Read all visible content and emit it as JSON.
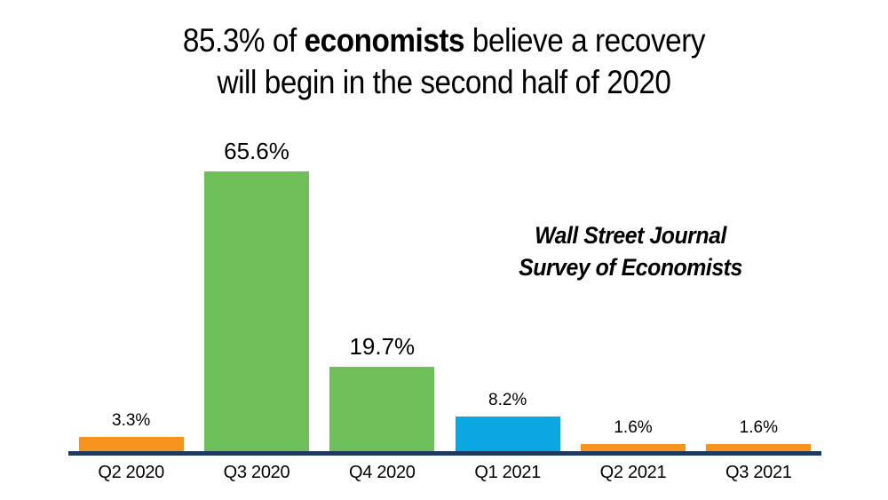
{
  "title": {
    "line1_prefix": "85.3% of ",
    "line1_bold": "economists",
    "line1_suffix": " believe a recovery",
    "line2": "will begin in the second half of 2020"
  },
  "annotation": {
    "line1": "Wall Street Journal",
    "line2": "Survey of Economists"
  },
  "chart_data": {
    "type": "bar",
    "title": "85.3% of economists believe a recovery will begin in the second half of 2020",
    "source_annotation": "Wall Street Journal Survey of Economists",
    "categories": [
      "Q2 2020",
      "Q3 2020",
      "Q4 2020",
      "Q1 2021",
      "Q2 2021",
      "Q3 2021"
    ],
    "values": [
      3.3,
      65.6,
      19.7,
      8.2,
      1.6,
      1.6
    ],
    "data_labels": [
      "3.3%",
      "65.6%",
      "19.7%",
      "8.2%",
      "1.6%",
      "1.6%"
    ],
    "bar_colors": [
      "#F7941D",
      "#6EBE59",
      "#6EBE59",
      "#0BA7E2",
      "#F7941D",
      "#F7941D"
    ],
    "large_label": [
      false,
      true,
      true,
      false,
      false,
      false
    ],
    "xlabel": "",
    "ylabel": "",
    "ylim": [
      0,
      70
    ],
    "grid": false,
    "legend": false,
    "colors": {
      "green": "#6EBE59",
      "orange": "#F7941D",
      "blue": "#0BA7E2",
      "axis": "#1E3A5F",
      "text": "#000000",
      "background": "#FFFFFF"
    }
  }
}
